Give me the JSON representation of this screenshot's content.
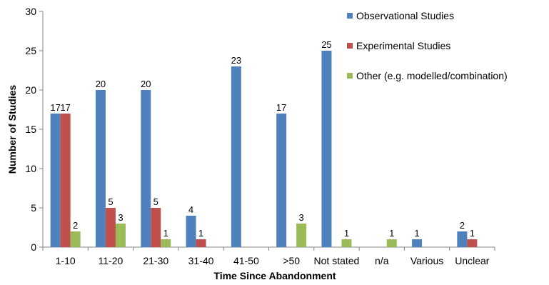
{
  "chart_data": {
    "type": "bar",
    "xlabel": "Time Since Abandonment",
    "ylabel": "Number of Studies",
    "ylim": [
      0,
      30
    ],
    "yticks": [
      0,
      5,
      10,
      15,
      20,
      25,
      30
    ],
    "grid": false,
    "legend_position": "top-right",
    "categories": [
      "1-10",
      "11-20",
      "21-30",
      "31-40",
      "41-50",
      ">50",
      "Not stated",
      "n/a",
      "Various",
      "Unclear"
    ],
    "series": [
      {
        "name": "Observational Studies",
        "color": "#4F81BD",
        "values": [
          17,
          20,
          20,
          4,
          23,
          17,
          25,
          0,
          1,
          2
        ]
      },
      {
        "name": "Experimental Studies",
        "color": "#C0504D",
        "values": [
          17,
          5,
          5,
          1,
          0,
          0,
          0,
          0,
          0,
          1
        ]
      },
      {
        "name": "Other (e.g. modelled/combination)",
        "color": "#9BBB59",
        "values": [
          2,
          3,
          1,
          0,
          0,
          3,
          1,
          1,
          0,
          0
        ]
      }
    ]
  }
}
